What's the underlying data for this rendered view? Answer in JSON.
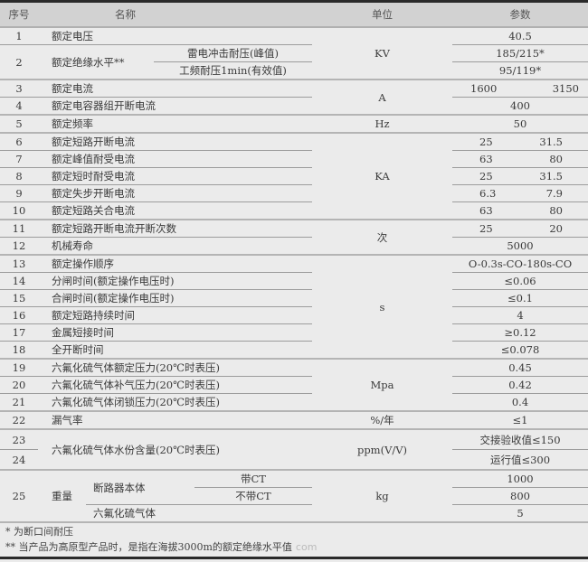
{
  "header": {
    "no": "序号",
    "name": "名称",
    "unit": "单位",
    "param": "参数"
  },
  "rows": {
    "r1": {
      "no": "1",
      "name": "额定电压",
      "unit": "KV",
      "param": "40.5"
    },
    "r2": {
      "no": "2",
      "name": "额定绝缘水平**",
      "sub1": "雷电冲击耐压(峰值)",
      "p1": "185/215*",
      "sub2": "工频耐压1min(有效值)",
      "p2": "95/119*"
    },
    "r3": {
      "no": "3",
      "name": "额定电流",
      "unit": "A",
      "p1": "1600",
      "p2": "3150"
    },
    "r4": {
      "no": "4",
      "name": "额定电容器组开断电流",
      "param": "400"
    },
    "r5": {
      "no": "5",
      "name": "额定频率",
      "unit": "Hz",
      "param": "50"
    },
    "r6": {
      "no": "6",
      "name": "额定短路开断电流",
      "unit": "KA",
      "p1": "25",
      "p2": "31.5"
    },
    "r7": {
      "no": "7",
      "name": "额定峰值耐受电流",
      "p1": "63",
      "p2": "80"
    },
    "r8": {
      "no": "8",
      "name": "额定短时耐受电流",
      "p1": "25",
      "p2": "31.5"
    },
    "r9": {
      "no": "9",
      "name": "额定失步开断电流",
      "p1": "6.3",
      "p2": "7.9"
    },
    "r10": {
      "no": "10",
      "name": "额定短路关合电流",
      "p1": "63",
      "p2": "80"
    },
    "r11": {
      "no": "11",
      "name": "额定短路开断电流开断次数",
      "unit": "次",
      "p1": "25",
      "p2": "20"
    },
    "r12": {
      "no": "12",
      "name": "机械寿命",
      "param": "5000"
    },
    "r13": {
      "no": "13",
      "name": "额定操作顺序",
      "unit": "s",
      "param": "O-0.3s-CO-180s-CO"
    },
    "r14": {
      "no": "14",
      "name": "分闸时间(额定操作电压时)",
      "param": "≤0.06"
    },
    "r15": {
      "no": "15",
      "name": "合闸时间(额定操作电压时)",
      "param": "≤0.1"
    },
    "r16": {
      "no": "16",
      "name": "额定短路持续时间",
      "param": "4"
    },
    "r17": {
      "no": "17",
      "name": "金属短接时间",
      "param": "≥0.12"
    },
    "r18": {
      "no": "18",
      "name": "全开断时间",
      "param": "≤0.078"
    },
    "r19": {
      "no": "19",
      "name": "六氟化硫气体额定压力(20℃时表压)",
      "unit": "Mpa",
      "param": "0.45"
    },
    "r20": {
      "no": "20",
      "name": "六氟化硫气体补气压力(20℃时表压)",
      "param": "0.42"
    },
    "r21": {
      "no": "21",
      "name": "六氟化硫气体闭锁压力(20℃时表压)",
      "param": "0.4"
    },
    "r22": {
      "no": "22",
      "name": "漏气率",
      "unit": "%/年",
      "param": "≤1"
    },
    "r23": {
      "no": "23",
      "no2": "24",
      "name": "六氟化硫气体水份含量(20℃时表压)",
      "unit": "ppm(V/V)",
      "p1": "交接验收值≤150",
      "p2": "运行值≤300"
    },
    "r25": {
      "no": "25",
      "name": "重量",
      "sub": "断路器本体",
      "ct1": "带CT",
      "ct2": "不带CT",
      "gas": "六氟化硫气体",
      "unit": "kg",
      "p1": "1000",
      "p2": "800",
      "p3": "5"
    }
  },
  "notes": {
    "n1": "*  为断口间耐压",
    "n2": "**  当产品为高原型产品时，是指在海拔3000m的额定绝缘水平值",
    "watermark": "com"
  }
}
